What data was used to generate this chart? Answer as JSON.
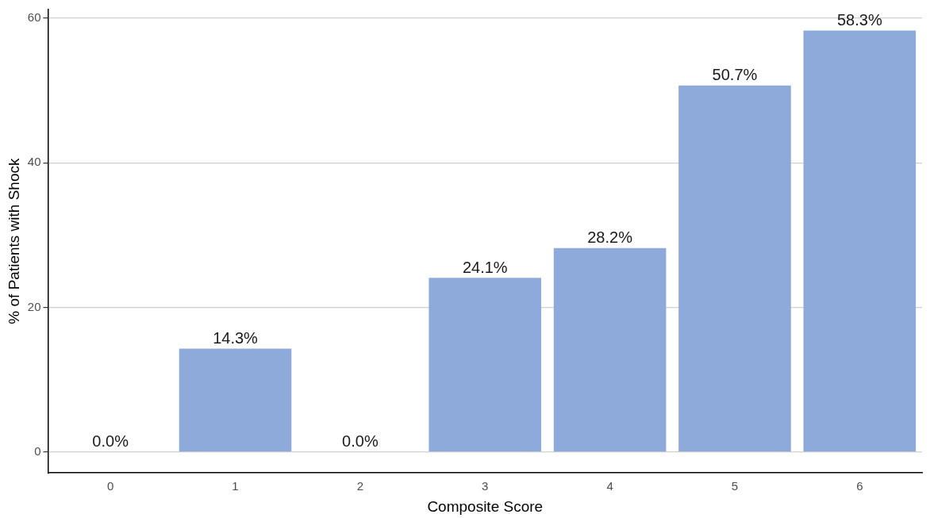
{
  "chart_data": {
    "type": "bar",
    "xlabel": "Composite Score",
    "ylabel": "% of Patients with Shock",
    "categories": [
      "0",
      "1",
      "2",
      "3",
      "4",
      "5",
      "6"
    ],
    "values": [
      0.0,
      14.3,
      0.0,
      24.1,
      28.2,
      50.7,
      58.3
    ],
    "value_labels": [
      "0.0%",
      "14.3%",
      "0.0%",
      "24.1%",
      "28.2%",
      "50.7%",
      "58.3%"
    ],
    "color": "#8eaadb",
    "ylim": [
      -2.9,
      61.2
    ],
    "yticks": [
      0,
      20,
      40,
      60
    ],
    "grid": "y",
    "legend": false
  }
}
